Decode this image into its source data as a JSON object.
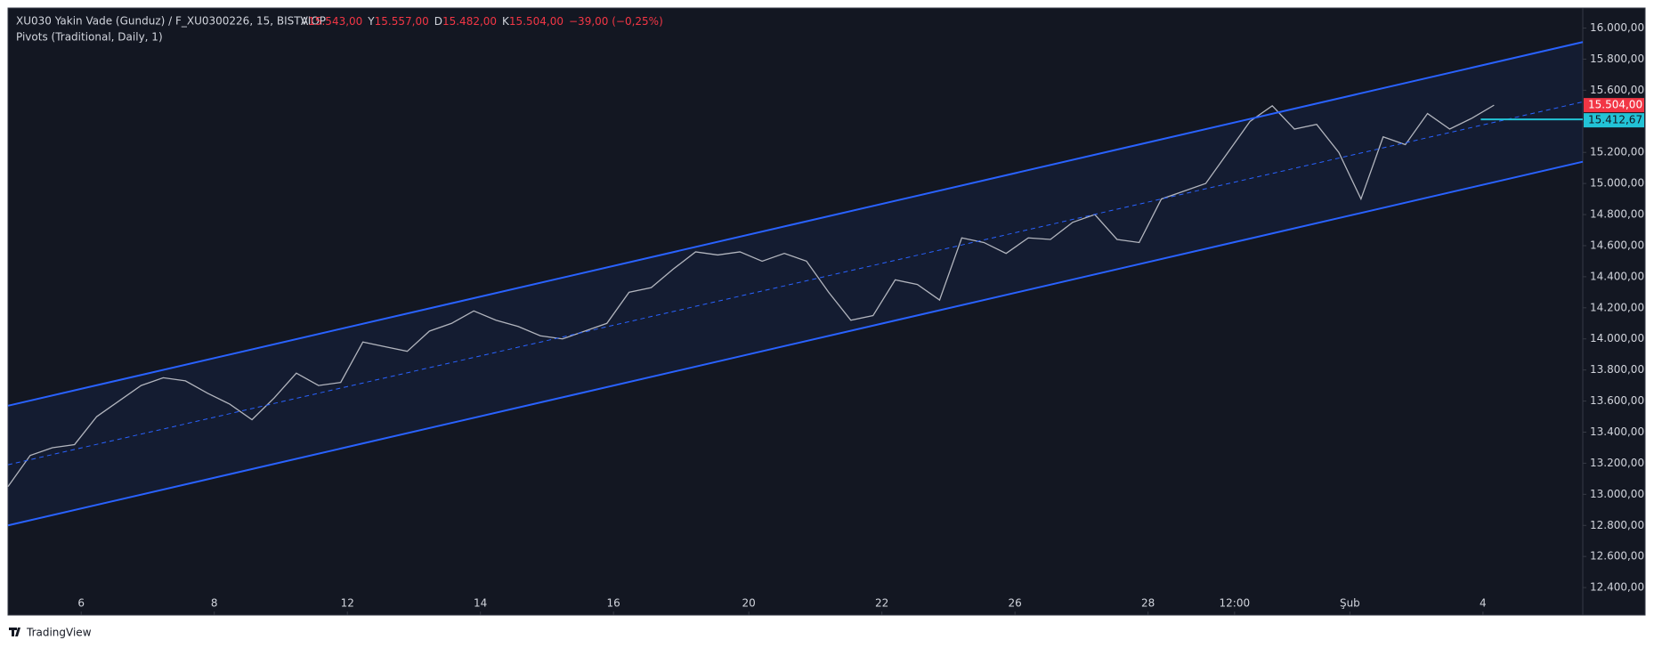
{
  "chart_data": {
    "type": "line",
    "title": "XU030 Yakin Vade  (Gunduz) / F_XU0300226, 15, BISTVIOP",
    "ohlc_text": [
      {
        "label": "A",
        "value": "15.543,00"
      },
      {
        "label": "Y",
        "value": "15.557,00"
      },
      {
        "label": "D",
        "value": "15.482,00"
      },
      {
        "label": "K",
        "value": "15.504,00"
      },
      {
        "label": "",
        "value": "−39,00 (−0,25%)"
      }
    ],
    "subtitle": "Pivots (Traditional, Daily, 1)",
    "branding": "TradingView",
    "background": "#131722",
    "xlim": [
      0,
      71
    ],
    "ylim": [
      12223,
      16129
    ],
    "xticks": [
      {
        "value": 3.3,
        "label": "6"
      },
      {
        "value": 9.3,
        "label": "8"
      },
      {
        "value": 15.3,
        "label": "12"
      },
      {
        "value": 21.3,
        "label": "14"
      },
      {
        "value": 27.3,
        "label": "16"
      },
      {
        "value": 33.4,
        "label": "20"
      },
      {
        "value": 39.4,
        "label": "22"
      },
      {
        "value": 45.4,
        "label": "26"
      },
      {
        "value": 51.4,
        "label": "28"
      },
      {
        "value": 55.3,
        "label": "12:00"
      },
      {
        "value": 60.5,
        "label": "Şub"
      },
      {
        "value": 66.5,
        "label": "4"
      }
    ],
    "yticks": [
      {
        "value": 12400,
        "label": "12.400,00"
      },
      {
        "value": 12600,
        "label": "12.600,00"
      },
      {
        "value": 12800,
        "label": "12.800,00"
      },
      {
        "value": 13000,
        "label": "13.000,00"
      },
      {
        "value": 13200,
        "label": "13.200,00"
      },
      {
        "value": 13400,
        "label": "13.400,00"
      },
      {
        "value": 13600,
        "label": "13.600,00"
      },
      {
        "value": 13800,
        "label": "13.800,00"
      },
      {
        "value": 14000,
        "label": "14.000,00"
      },
      {
        "value": 14200,
        "label": "14.200,00"
      },
      {
        "value": 14400,
        "label": "14.400,00"
      },
      {
        "value": 14600,
        "label": "14.600,00"
      },
      {
        "value": 14800,
        "label": "14.800,00"
      },
      {
        "value": 15000,
        "label": "15.000,00"
      },
      {
        "value": 15200,
        "label": "15.200,00"
      },
      {
        "value": 15400,
        "label": "15.400,00"
      },
      {
        "value": 15600,
        "label": "15.600,00"
      },
      {
        "value": 15800,
        "label": "15.800,00"
      },
      {
        "value": 16000,
        "label": "16.000,00"
      }
    ],
    "series": [
      {
        "role": "price",
        "color": "#b2b5be",
        "x": [
          0,
          1,
          2,
          3,
          4,
          5,
          6,
          7,
          8,
          9,
          10,
          11,
          12,
          13,
          14,
          15,
          16,
          17,
          18,
          19,
          20,
          21,
          22,
          23,
          24,
          25,
          26,
          27,
          28,
          29,
          30,
          31,
          32,
          33,
          34,
          35,
          36,
          37,
          38,
          39,
          40,
          41,
          42,
          43,
          44,
          45,
          46,
          47,
          48,
          49,
          50,
          51,
          52,
          53,
          54,
          55,
          56,
          57,
          58,
          59,
          60,
          61,
          62,
          63,
          64,
          65,
          66,
          67
        ],
        "values": [
          13050,
          13250,
          13300,
          13320,
          13500,
          13600,
          13700,
          13750,
          13730,
          13650,
          13580,
          13480,
          13620,
          13780,
          13700,
          13720,
          13980,
          13950,
          13920,
          14050,
          14100,
          14180,
          14120,
          14080,
          14020,
          14000,
          14050,
          14100,
          14300,
          14330,
          14450,
          14560,
          14540,
          14560,
          14500,
          14550,
          14500,
          14300,
          14120,
          14150,
          14380,
          14350,
          14250,
          14650,
          14620,
          14550,
          14650,
          14640,
          14750,
          14800,
          14640,
          14620,
          14900,
          14950,
          15000,
          15200,
          15400,
          15500,
          15350,
          15380,
          15200,
          14900,
          15300,
          15250,
          15450,
          15350,
          15420,
          15504
        ]
      },
      {
        "role": "upper",
        "color": "#2962ff",
        "x": [
          0,
          71
        ],
        "values": [
          13570,
          15910
        ]
      },
      {
        "role": "middle",
        "color": "#2962ff",
        "x": [
          0,
          71
        ],
        "values": [
          13190,
          15525
        ]
      },
      {
        "role": "lower",
        "color": "#2962ff",
        "x": [
          0,
          71
        ],
        "values": [
          12800,
          15140
        ]
      }
    ],
    "channel_fill": "#2962ff",
    "last_price": {
      "value": 15504,
      "label": "15.504,00",
      "color": "#f23645"
    },
    "pivot": {
      "value": 15412.67,
      "label": "15.412,67",
      "color": "#22c3d6",
      "x_start": 66.4
    }
  }
}
